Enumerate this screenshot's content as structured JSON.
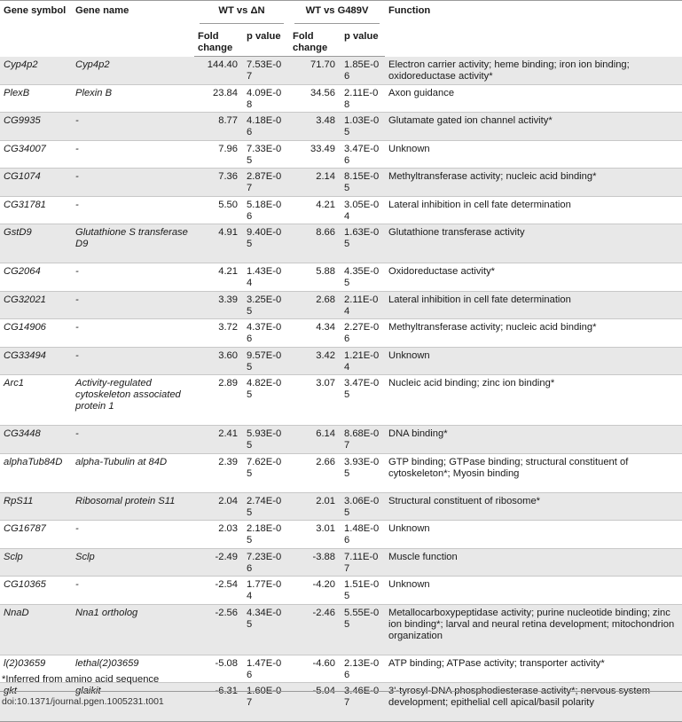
{
  "headers": {
    "gene_symbol": "Gene symbol",
    "gene_name": "Gene name",
    "wt_vs_dn": "WT vs ΔN",
    "wt_vs_g489v": "WT vs G489V",
    "function": "Function",
    "fold_change": "Fold change",
    "p_value": "p value"
  },
  "rows": [
    {
      "symbol": "Cyp4p2",
      "name": "Cyp4p2",
      "fc1": "144.40",
      "p1": "7.53E-07",
      "fc2": "71.70",
      "p2": "1.85E-06",
      "function": "Electron carrier activity; heme binding; iron ion binding; oxidoreductase activity*"
    },
    {
      "symbol": "PlexB",
      "name": "Plexin B",
      "fc1": "23.84",
      "p1": "4.09E-08",
      "fc2": "34.56",
      "p2": "2.11E-08",
      "function": "Axon guidance"
    },
    {
      "symbol": "CG9935",
      "name": "-",
      "fc1": "8.77",
      "p1": "4.18E-06",
      "fc2": "3.48",
      "p2": "1.03E-05",
      "function": "Glutamate gated ion channel activity*"
    },
    {
      "symbol": "CG34007",
      "name": "-",
      "fc1": "7.96",
      "p1": "7.33E-05",
      "fc2": "33.49",
      "p2": "3.47E-06",
      "function": "Unknown"
    },
    {
      "symbol": "CG1074",
      "name": "-",
      "fc1": "7.36",
      "p1": "2.87E-07",
      "fc2": "2.14",
      "p2": "8.15E-05",
      "function": "Methyltransferase activity; nucleic acid binding*"
    },
    {
      "symbol": "CG31781",
      "name": "-",
      "fc1": "5.50",
      "p1": "5.18E-06",
      "fc2": "4.21",
      "p2": "3.05E-04",
      "function": "Lateral inhibition in cell fate determination"
    },
    {
      "symbol": "GstD9",
      "name": "Glutathione S transferase D9",
      "fc1": "4.91",
      "p1": "9.40E-05",
      "fc2": "8.66",
      "p2": "1.63E-05",
      "function": "Glutathione transferase activity"
    },
    {
      "symbol": "CG2064",
      "name": "-",
      "fc1": "4.21",
      "p1": "1.43E-04",
      "fc2": "5.88",
      "p2": "4.35E-05",
      "function": "Oxidoreductase activity*"
    },
    {
      "symbol": "CG32021",
      "name": "-",
      "fc1": "3.39",
      "p1": "3.25E-05",
      "fc2": "2.68",
      "p2": "2.11E-04",
      "function": "Lateral inhibition in cell fate determination"
    },
    {
      "symbol": "CG14906",
      "name": "-",
      "fc1": "3.72",
      "p1": "4.37E-06",
      "fc2": "4.34",
      "p2": "2.27E-06",
      "function": "Methyltransferase activity; nucleic acid binding*"
    },
    {
      "symbol": "CG33494",
      "name": "-",
      "fc1": "3.60",
      "p1": "9.57E-05",
      "fc2": "3.42",
      "p2": "1.21E-04",
      "function": "Unknown"
    },
    {
      "symbol": "Arc1",
      "name": "Activity-regulated cytoskeleton associated protein 1",
      "fc1": "2.89",
      "p1": "4.82E-05",
      "fc2": "3.07",
      "p2": "3.47E-05",
      "function": "Nucleic acid binding; zinc ion binding*"
    },
    {
      "symbol": "CG3448",
      "name": "-",
      "fc1": "2.41",
      "p1": "5.93E-05",
      "fc2": "6.14",
      "p2": "8.68E-07",
      "function": "DNA binding*"
    },
    {
      "symbol": "alphaTub84D",
      "name": "alpha-Tubulin at 84D",
      "fc1": "2.39",
      "p1": "7.62E-05",
      "fc2": "2.66",
      "p2": "3.93E-05",
      "function": "GTP binding; GTPase binding; structural constituent of cytoskeleton*; Myosin binding"
    },
    {
      "symbol": "RpS11",
      "name": "Ribosomal protein S11",
      "fc1": "2.04",
      "p1": "2.74E-05",
      "fc2": "2.01",
      "p2": "3.06E-05",
      "function": "Structural constituent of ribosome*"
    },
    {
      "symbol": "CG16787",
      "name": "-",
      "fc1": "2.03",
      "p1": "2.18E-05",
      "fc2": "3.01",
      "p2": "1.48E-06",
      "function": "Unknown"
    },
    {
      "symbol": "Sclp",
      "name": "Sclp",
      "fc1": "-2.49",
      "p1": "7.23E-06",
      "fc2": "-3.88",
      "p2": "7.11E-07",
      "function": "Muscle function"
    },
    {
      "symbol": "CG10365",
      "name": "-",
      "fc1": "-2.54",
      "p1": "1.77E-04",
      "fc2": "-4.20",
      "p2": "1.51E-05",
      "function": "Unknown"
    },
    {
      "symbol": "NnaD",
      "name": "Nna1 ortholog",
      "fc1": "-2.56",
      "p1": "4.34E-05",
      "fc2": "-2.46",
      "p2": "5.55E-05",
      "function": "Metallocarboxypeptidase activity; purine nucleotide binding; zinc ion binding*; larval and neural retina development; mitochondrion organization"
    },
    {
      "symbol": "l(2)03659",
      "name": "lethal(2)03659",
      "fc1": "-5.08",
      "p1": "1.47E-06",
      "fc2": "-4.60",
      "p2": "2.13E-06",
      "function": "ATP binding; ATPase activity; transporter activity*"
    },
    {
      "symbol": "gkt",
      "name": "glaikit",
      "fc1": "-6.31",
      "p1": "1.60E-07",
      "fc2": "-5.04",
      "p2": "3.46E-07",
      "function": "3'-tyrosyl-DNA phosphodiesterase activity*; nervous system development; epithelial cell apical/basil polarity"
    }
  ],
  "footnote": "*Inferred from amino acid sequence",
  "doi": "doi:10.1371/journal.pgen.1005231.t001"
}
